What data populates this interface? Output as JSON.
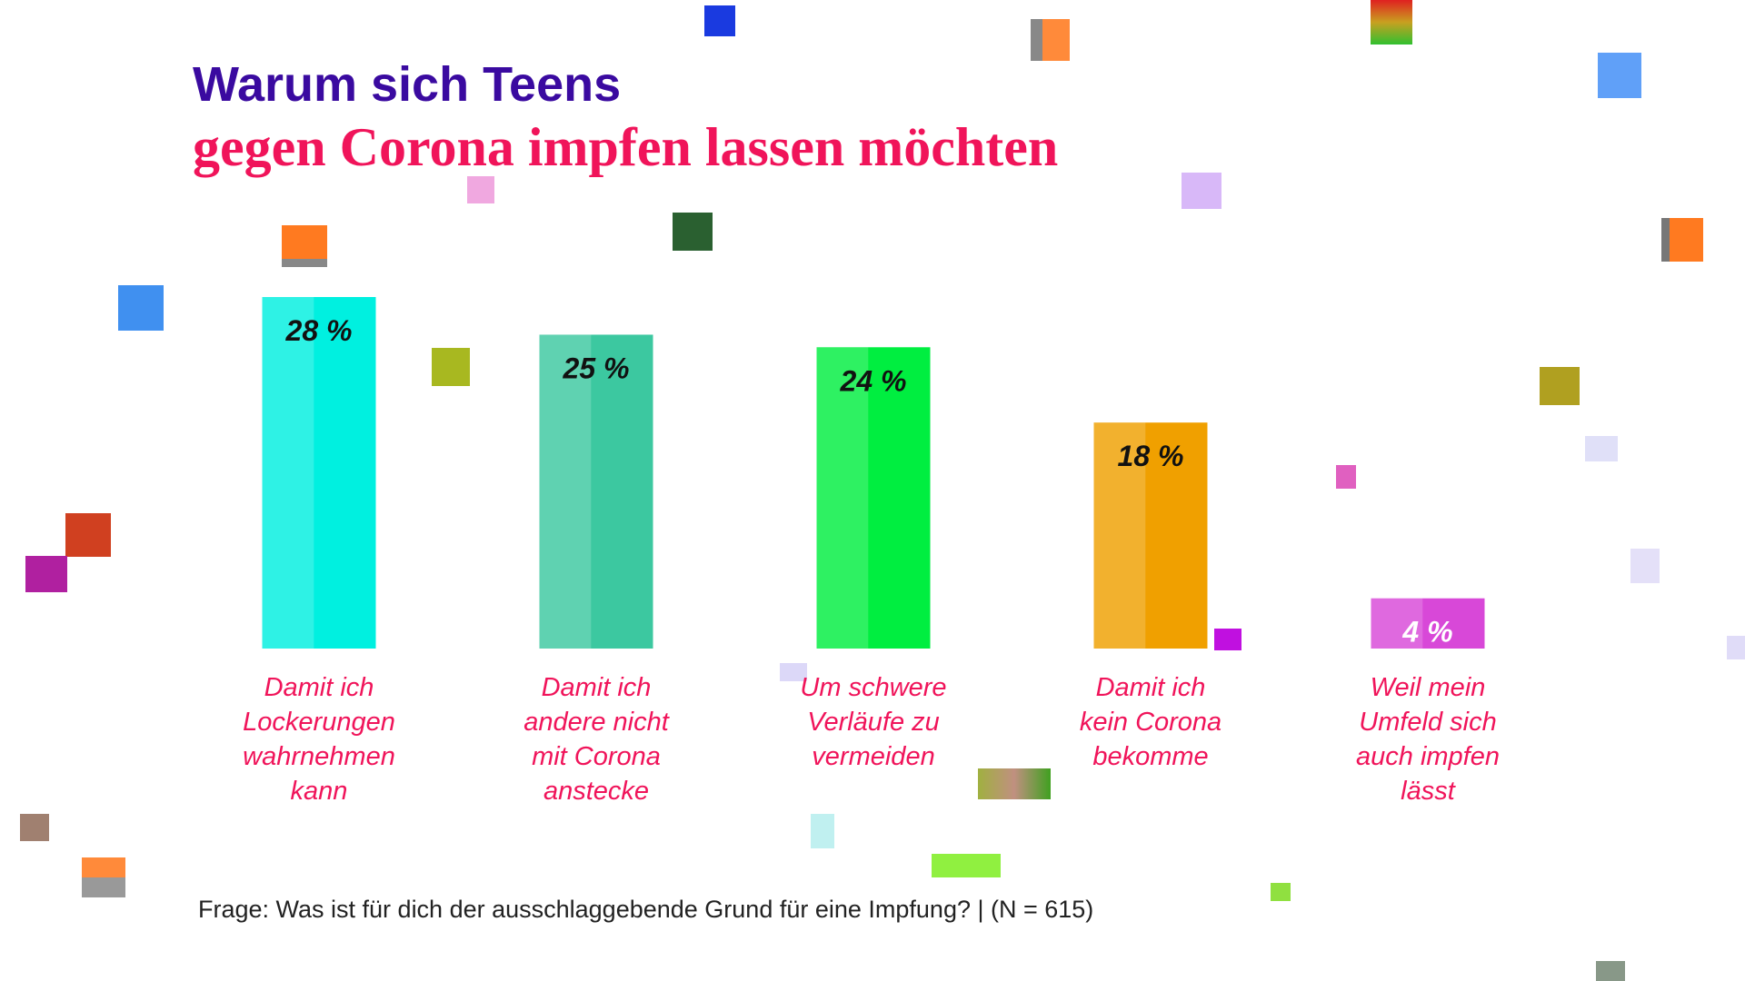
{
  "chart_data": {
    "type": "bar",
    "title": "Warum sich Teens",
    "subtitle": "gegen Corona impfen lassen möchten",
    "categories": [
      "Damit ich\nLockerungen\nwahrnehmen\nkann",
      "Damit ich\nandere nicht\nmit Corona\nanstecke",
      "Um schwere\nVerläufe zu\nvermeiden",
      "Damit ich\nkein Corona\nbekomme",
      "Weil mein\nUmfeld sich\nauch impfen\nlässt"
    ],
    "values": [
      28,
      25,
      24,
      18,
      4
    ],
    "value_labels": [
      "28 %",
      "25 %",
      "24 %",
      "18 %",
      "4 %"
    ],
    "colors": [
      "#00f0e0",
      "#3cc8a0",
      "#00ee40",
      "#f0a000",
      "#d848d8"
    ],
    "value_label_colors": [
      "#111111",
      "#111111",
      "#111111",
      "#111111",
      "#ffffff"
    ],
    "ylim": [
      0,
      28
    ],
    "footnote": "Frage: Was ist für dich der ausschlaggebende Grund für eine Impfung? | (N = 615)"
  }
}
